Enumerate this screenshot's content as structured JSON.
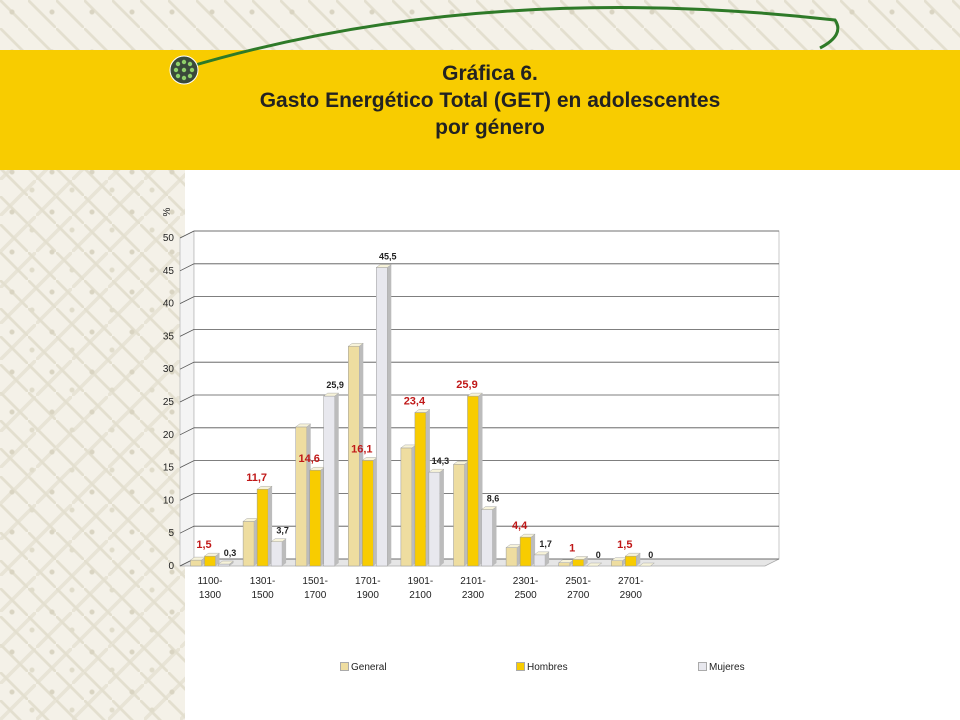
{
  "title_lines": [
    "Gráfica 6.",
    "Gasto Energético Total (GET) en adolescentes",
    "por género"
  ],
  "chart_data": {
    "type": "bar",
    "ylabel": "%",
    "ylim": [
      0,
      50
    ],
    "yticks": [
      0,
      5,
      10,
      15,
      20,
      25,
      30,
      35,
      40,
      45,
      50
    ],
    "categories": [
      "1100-\n1300",
      "1301-\n1500",
      "1501-\n1700",
      "1701-\n1900",
      "1901-\n2100",
      "2101-\n2300",
      "2301-\n2500",
      "2501-\n2700",
      "2701-\n2900"
    ],
    "series": [
      {
        "name": "General",
        "values": [
          0.9,
          6.8,
          21.2,
          33.5,
          18,
          15.5,
          2.8,
          0.5,
          0.8
        ],
        "color": "#eedda0",
        "labels": false
      },
      {
        "name": "Hombres",
        "values": [
          1.5,
          11.7,
          14.6,
          16.1,
          23.4,
          25.9,
          4.4,
          1,
          1.5
        ],
        "color": "#f8cc00",
        "labels": true,
        "label_color": "#c01818"
      },
      {
        "name": "Mujeres",
        "values": [
          0.3,
          3.7,
          25.9,
          45.5,
          14.3,
          8.6,
          1.7,
          0,
          0
        ],
        "color": "#e8e8ee",
        "labels": true,
        "label_color": "#222222"
      }
    ],
    "value_labels": {
      "Hombres": [
        "1,5",
        "11,7",
        "14,6",
        "16,1",
        "23,4",
        "25,9",
        "4,4",
        "1",
        "1,5"
      ],
      "Mujeres": [
        "0,3",
        "3,7",
        "25,9",
        "45,5",
        "14,3",
        "8,6",
        "1,7",
        "0",
        "0"
      ]
    },
    "grid": true,
    "legend_position": "bottom"
  }
}
